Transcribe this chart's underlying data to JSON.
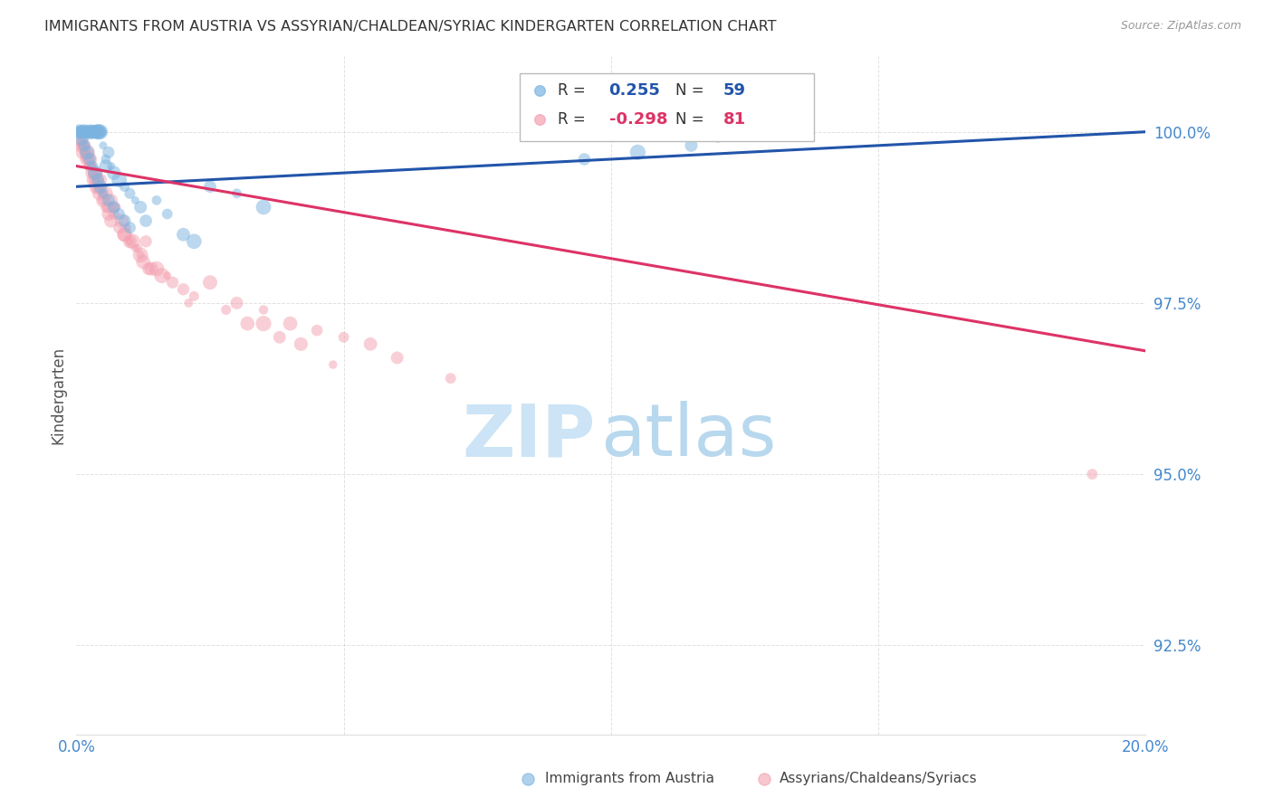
{
  "title": "IMMIGRANTS FROM AUSTRIA VS ASSYRIAN/CHALDEAN/SYRIAC KINDERGARTEN CORRELATION CHART",
  "source": "Source: ZipAtlas.com",
  "ylabel": "Kindergarten",
  "yticks": [
    92.5,
    95.0,
    97.5,
    100.0
  ],
  "ytick_labels": [
    "92.5%",
    "95.0%",
    "97.5%",
    "100.0%"
  ],
  "xmin": 0.0,
  "xmax": 20.0,
  "ymin": 91.2,
  "ymax": 101.1,
  "series1_label": "Immigrants from Austria",
  "series2_label": "Assyrians/Chaldeans/Syriacs",
  "series1_R": "0.255",
  "series1_N": "59",
  "series2_R": "-0.298",
  "series2_N": "81",
  "series1_color": "#7ab3e0",
  "series2_color": "#f4a0b0",
  "trendline1_color": "#2255aa",
  "trendline2_color": "#dd3366",
  "watermark_zip_color": "#cce4f5",
  "watermark_atlas_color": "#b8d8ee",
  "background_color": "#ffffff",
  "title_color": "#333333",
  "axis_label_color": "#4488cc",
  "ytick_color": "#4488cc",
  "grid_color": "#cccccc",
  "series1_x": [
    0.05,
    0.08,
    0.1,
    0.12,
    0.15,
    0.18,
    0.2,
    0.22,
    0.25,
    0.28,
    0.3,
    0.32,
    0.35,
    0.38,
    0.4,
    0.42,
    0.45,
    0.48,
    0.5,
    0.55,
    0.6,
    0.65,
    0.7,
    0.8,
    0.9,
    1.0,
    1.1,
    1.2,
    1.3,
    1.5,
    1.7,
    2.0,
    2.5,
    3.0,
    3.5,
    0.1,
    0.15,
    0.2,
    0.25,
    0.3,
    0.35,
    0.4,
    0.45,
    0.5,
    0.6,
    0.7,
    0.8,
    0.9,
    1.0,
    2.2,
    9.5,
    10.5,
    11.5,
    12.0,
    13.5,
    0.07,
    0.13,
    0.22,
    0.55
  ],
  "series1_y": [
    100.0,
    100.0,
    100.0,
    100.0,
    100.0,
    100.0,
    100.0,
    100.0,
    100.0,
    100.0,
    100.0,
    100.0,
    100.0,
    100.0,
    100.0,
    100.0,
    100.0,
    100.0,
    99.8,
    99.6,
    99.7,
    99.5,
    99.4,
    99.3,
    99.2,
    99.1,
    99.0,
    98.9,
    98.7,
    99.0,
    98.8,
    98.5,
    99.2,
    99.1,
    98.9,
    99.9,
    99.8,
    99.7,
    99.6,
    99.5,
    99.4,
    99.3,
    99.2,
    99.1,
    99.0,
    98.9,
    98.8,
    98.7,
    98.6,
    98.4,
    99.6,
    99.7,
    99.8,
    99.9,
    100.0,
    100.0,
    100.0,
    100.0,
    99.5
  ],
  "series2_x": [
    0.05,
    0.08,
    0.1,
    0.12,
    0.15,
    0.18,
    0.2,
    0.22,
    0.25,
    0.28,
    0.3,
    0.32,
    0.35,
    0.38,
    0.4,
    0.42,
    0.45,
    0.48,
    0.5,
    0.55,
    0.6,
    0.65,
    0.7,
    0.8,
    0.9,
    1.0,
    1.1,
    1.2,
    1.3,
    1.5,
    1.7,
    2.0,
    2.5,
    3.0,
    3.5,
    4.0,
    4.5,
    5.0,
    5.5,
    6.0,
    0.1,
    0.15,
    0.2,
    0.25,
    0.3,
    0.35,
    0.4,
    0.5,
    0.6,
    0.7,
    0.9,
    1.0,
    1.2,
    1.4,
    1.6,
    1.8,
    2.2,
    2.8,
    3.2,
    3.8,
    0.07,
    0.13,
    0.18,
    0.28,
    0.38,
    0.45,
    0.55,
    0.65,
    0.75,
    0.85,
    0.95,
    1.05,
    1.15,
    1.25,
    1.35,
    2.1,
    3.5,
    4.2,
    4.8,
    19.0,
    7.0
  ],
  "series2_y": [
    100.0,
    99.8,
    99.9,
    99.7,
    99.8,
    99.6,
    99.7,
    99.5,
    99.6,
    99.4,
    99.5,
    99.3,
    99.4,
    99.2,
    99.3,
    99.1,
    99.2,
    99.0,
    99.1,
    98.9,
    98.8,
    98.7,
    98.9,
    98.6,
    98.5,
    98.4,
    98.3,
    98.2,
    98.4,
    98.0,
    97.9,
    97.7,
    97.8,
    97.5,
    97.4,
    97.2,
    97.1,
    97.0,
    96.9,
    96.7,
    99.8,
    99.7,
    99.6,
    99.5,
    99.4,
    99.3,
    99.2,
    99.0,
    98.9,
    98.8,
    98.5,
    98.4,
    98.2,
    98.0,
    97.9,
    97.8,
    97.6,
    97.4,
    97.2,
    97.0,
    99.9,
    99.8,
    99.7,
    99.5,
    99.4,
    99.3,
    99.1,
    99.0,
    98.9,
    98.7,
    98.6,
    98.4,
    98.3,
    98.1,
    98.0,
    97.5,
    97.2,
    96.9,
    96.6,
    95.0,
    96.4
  ],
  "series1_trendline_x": [
    0.0,
    20.0
  ],
  "series1_trendline_y": [
    99.2,
    100.0
  ],
  "series2_trendline_x": [
    0.0,
    20.0
  ],
  "series2_trendline_y": [
    99.5,
    96.8
  ]
}
